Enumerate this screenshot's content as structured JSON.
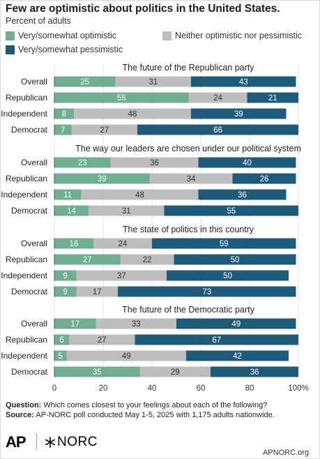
{
  "header": {
    "title": "Few are optimistic about politics in the United States.",
    "subtitle": "Percent of adults"
  },
  "legend": [
    {
      "label": "Very/somewhat optimistic",
      "color": "#6fae8e"
    },
    {
      "label": "Neither optimistic nor pessimistic",
      "color": "#bdbdbd"
    },
    {
      "label": "Very/somewhat pessimistic",
      "color": "#1e5a7a"
    }
  ],
  "chart_data": {
    "type": "bar",
    "orientation": "horizontal-stacked",
    "xlim": [
      0,
      100
    ],
    "xticks": [
      "0",
      "20",
      "40",
      "60",
      "80",
      "100%"
    ],
    "series_names": [
      "Very/somewhat optimistic",
      "Neither optimistic nor pessimistic",
      "Very/somewhat pessimistic"
    ],
    "colors": [
      "#6fae8e",
      "#bdbdbd",
      "#1e5a7a"
    ],
    "panels": [
      {
        "title": "The future of the Republican party",
        "rows": [
          {
            "label": "Overall",
            "values": [
              25,
              31,
              43
            ]
          },
          {
            "label": "Republican",
            "values": [
              55,
              24,
              21
            ]
          },
          {
            "label": "Independent",
            "values": [
              8,
              48,
              39
            ]
          },
          {
            "label": "Democrat",
            "values": [
              7,
              27,
              66
            ]
          }
        ]
      },
      {
        "title": "The way our leaders are chosen under our political system",
        "rows": [
          {
            "label": "Overall",
            "values": [
              23,
              36,
              40
            ]
          },
          {
            "label": "Republican",
            "values": [
              39,
              34,
              26
            ]
          },
          {
            "label": "Independent",
            "values": [
              11,
              48,
              36
            ]
          },
          {
            "label": "Democrat",
            "values": [
              14,
              31,
              55
            ]
          }
        ]
      },
      {
        "title": "The state of politics in this country",
        "rows": [
          {
            "label": "Overall",
            "values": [
              16,
              24,
              59
            ]
          },
          {
            "label": "Republican",
            "values": [
              27,
              22,
              50
            ]
          },
          {
            "label": "Independent",
            "values": [
              9,
              37,
              50
            ]
          },
          {
            "label": "Democrat",
            "values": [
              9,
              17,
              73
            ]
          }
        ]
      },
      {
        "title": "The future of the Democratic party",
        "rows": [
          {
            "label": "Overall",
            "values": [
              17,
              33,
              49
            ]
          },
          {
            "label": "Republican",
            "values": [
              6,
              27,
              67
            ]
          },
          {
            "label": "Independent",
            "values": [
              5,
              49,
              42
            ]
          },
          {
            "label": "Democrat",
            "values": [
              35,
              29,
              36
            ]
          }
        ]
      }
    ]
  },
  "footer": {
    "question_label": "Question:",
    "question_text": "Which comes closest to your feelings about each of the following?",
    "source_label": "Source:",
    "source_text": "AP-NORC poll conducted May 1-5, 2025 with 1,175 adults nationwide.",
    "logo_ap": "AP",
    "logo_norc": "NORC",
    "site": "APNORC.org"
  }
}
